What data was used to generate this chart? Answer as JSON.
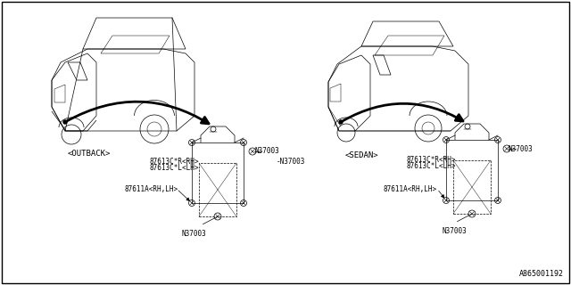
{
  "background_color": "#ffffff",
  "border_color": "#000000",
  "part_number_bottom_right": "A865001192",
  "left_vehicle_label": "<OUTBACK>",
  "right_vehicle_label": "<SEDAN>",
  "left_parts_bracket": [
    "87613C*R<RH>",
    "87613C*L<LH>"
  ],
  "right_parts_bracket": [
    "87613C*R<RH>",
    "87613C*L<LH>"
  ],
  "left_unit_label": "87611A<RH,LH>",
  "right_unit_label": "87611A<RH,LH>",
  "bolt_label": "N37003",
  "line_color": "#000000",
  "text_color": "#000000",
  "font_size": 5.5
}
